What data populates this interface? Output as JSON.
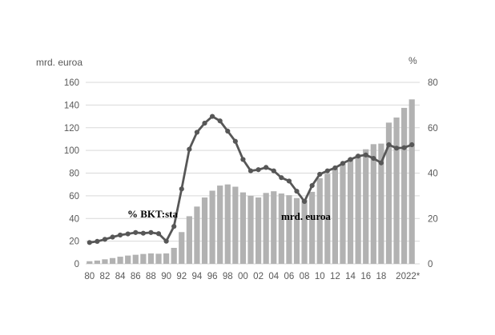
{
  "chart_data": {
    "type": "combo-bar-line",
    "title": "",
    "years": [
      1980,
      1981,
      1982,
      1983,
      1984,
      1985,
      1986,
      1987,
      1988,
      1989,
      1990,
      1991,
      1992,
      1993,
      1994,
      1995,
      1996,
      1997,
      1998,
      1999,
      2000,
      2001,
      2002,
      2003,
      2004,
      2005,
      2006,
      2007,
      2008,
      2009,
      2010,
      2011,
      2012,
      2013,
      2014,
      2015,
      2016,
      2017,
      2018,
      2019,
      2020,
      2021,
      2022
    ],
    "x_tick_labels": [
      "80",
      "82",
      "84",
      "86",
      "88",
      "90",
      "92",
      "94",
      "96",
      "98",
      "00",
      "02",
      "04",
      "06",
      "08",
      "10",
      "12",
      "14",
      "16",
      "18",
      "2022*"
    ],
    "series": [
      {
        "name": "mrd. euroa",
        "type": "bar",
        "axis": "left",
        "color": "#b2b2b2",
        "values": [
          2.3,
          2.9,
          4.0,
          5.1,
          6.3,
          7.3,
          8.0,
          8.7,
          9.2,
          8.9,
          9.2,
          14.1,
          28,
          42,
          50.5,
          58.5,
          64.5,
          69,
          70,
          68,
          63,
          60,
          58.5,
          62.5,
          64,
          62,
          60.5,
          58,
          56.5,
          63.5,
          75.5,
          79.5,
          84,
          88.5,
          93,
          96,
          101,
          105.5,
          106,
          124.5,
          129,
          137.5,
          145
        ]
      },
      {
        "name": "% BKT:sta",
        "type": "line",
        "axis": "right",
        "color": "#575757",
        "values": [
          9.4,
          9.9,
          10.8,
          11.8,
          12.7,
          13.2,
          13.8,
          13.5,
          13.8,
          13.3,
          10,
          16.5,
          33,
          50.5,
          58,
          62,
          65,
          63,
          58.5,
          54,
          46,
          41,
          41.5,
          42.5,
          41,
          38,
          36.5,
          32,
          27.5,
          34.5,
          39.5,
          41,
          42.3,
          44.3,
          46,
          47.5,
          48,
          46.5,
          44.5,
          52.5,
          51,
          51.2,
          52.5
        ]
      }
    ],
    "left_axis": {
      "title": "mrd. euroa",
      "min": 0,
      "max": 160,
      "step": 20
    },
    "right_axis": {
      "title": "%",
      "min": 0,
      "max": 80,
      "step": 20
    },
    "grid": {
      "horizontal": true,
      "vertical": false,
      "color": "#d9d9d9"
    },
    "legend": "none",
    "annotations": [
      {
        "text": "% BKT:sta",
        "refers_to": "line series"
      },
      {
        "text": "mrd. euroa",
        "refers_to": "bar series"
      }
    ]
  }
}
